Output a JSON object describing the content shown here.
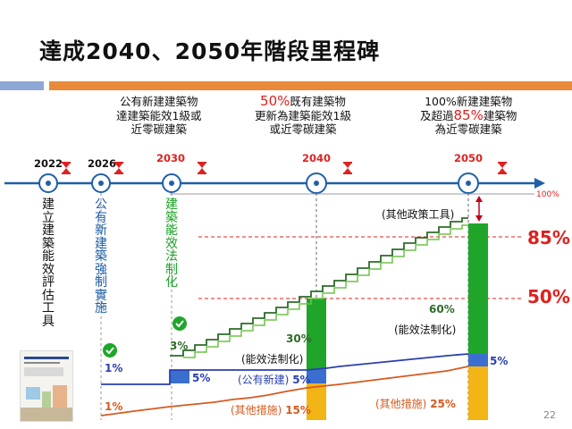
{
  "title": "達成2040、2050年階段里程碑",
  "milestones": [
    {
      "year": "2022",
      "vertical_text": "建立建築能效評估工具"
    },
    {
      "year": "2026",
      "vertical_text": "公有新建築強制實施"
    },
    {
      "year": "2030",
      "vertical_text": "建築能效法制化",
      "desc": [
        "公有新建建築物",
        "達建築能效1級或",
        "近零碳建築"
      ]
    },
    {
      "year": "2040",
      "desc_highlight": "50%",
      "desc": [
        "既有建築物",
        "更新為建築能效1級",
        "或近零碳建築"
      ]
    },
    {
      "year": "2050",
      "desc_prefix": "100%新建建築物",
      "desc_line2_a": "及超過",
      "desc_highlight": "85%",
      "desc_line2_b": "建築物",
      "desc_line3": "為近零碳建築"
    }
  ],
  "chart": {
    "max_label": "100%",
    "other_policy_label": "(其他政策工具)",
    "threshold_85": "85%",
    "threshold_50": "50%",
    "labels_2026": {
      "top": "1%",
      "bottom": "1%"
    },
    "labels_2030": {
      "pct_top": "3%",
      "pct_mid": "5%"
    },
    "labels_2040": {
      "green_pct": "30%",
      "green_label": "(能效法制化)",
      "blue_label": "(公有新建)",
      "blue_pct": "5%",
      "orange_label": "(其他措施)",
      "orange_pct": "15%"
    },
    "labels_2050": {
      "green_pct": "60%",
      "green_label": "(能效法制化)",
      "blue_pct": "5%",
      "orange_label": "(其他措施)",
      "orange_pct": "25%"
    }
  },
  "colors": {
    "green": "#1fa62a",
    "blue": "#3a6fd0",
    "orange": "#f3b416",
    "red": "#e0201e",
    "axis": "#1f5fa8"
  },
  "page_number": "22"
}
